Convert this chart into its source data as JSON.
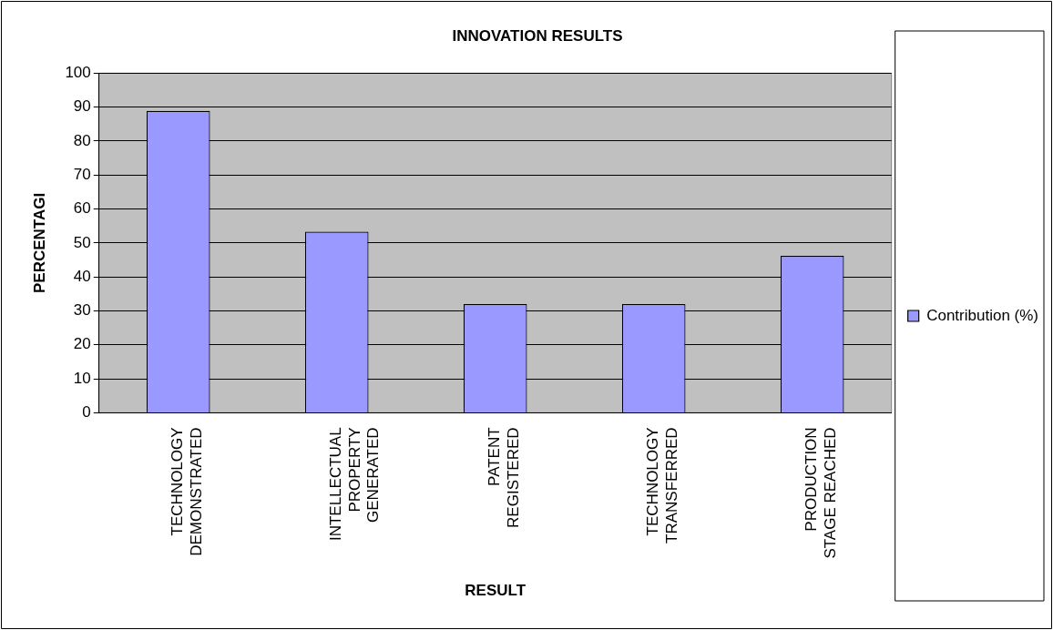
{
  "chart_data": {
    "type": "bar",
    "title": "INNOVATION RESULTS",
    "xlabel": "RESULT",
    "ylabel": "PERCENTAGI",
    "categories": [
      "TECHNOLOGY DEMONSTRATED",
      "INTELLECTUAL PROPERTY GENERATED",
      "PATENT REGISTERED",
      "TECHNOLOGY TRANSFERRED",
      "PRODUCTION STAGE REACHED"
    ],
    "series": [
      {
        "name": "Contribution (%)",
        "color": "#9999ff",
        "values": [
          88.9,
          53.3,
          32.0,
          32.0,
          46.2
        ]
      }
    ],
    "ylim": [
      0,
      100
    ],
    "yticks": [
      0,
      10,
      20,
      30,
      40,
      50,
      60,
      70,
      80,
      90,
      100
    ],
    "grid": "y",
    "legend": "right"
  }
}
